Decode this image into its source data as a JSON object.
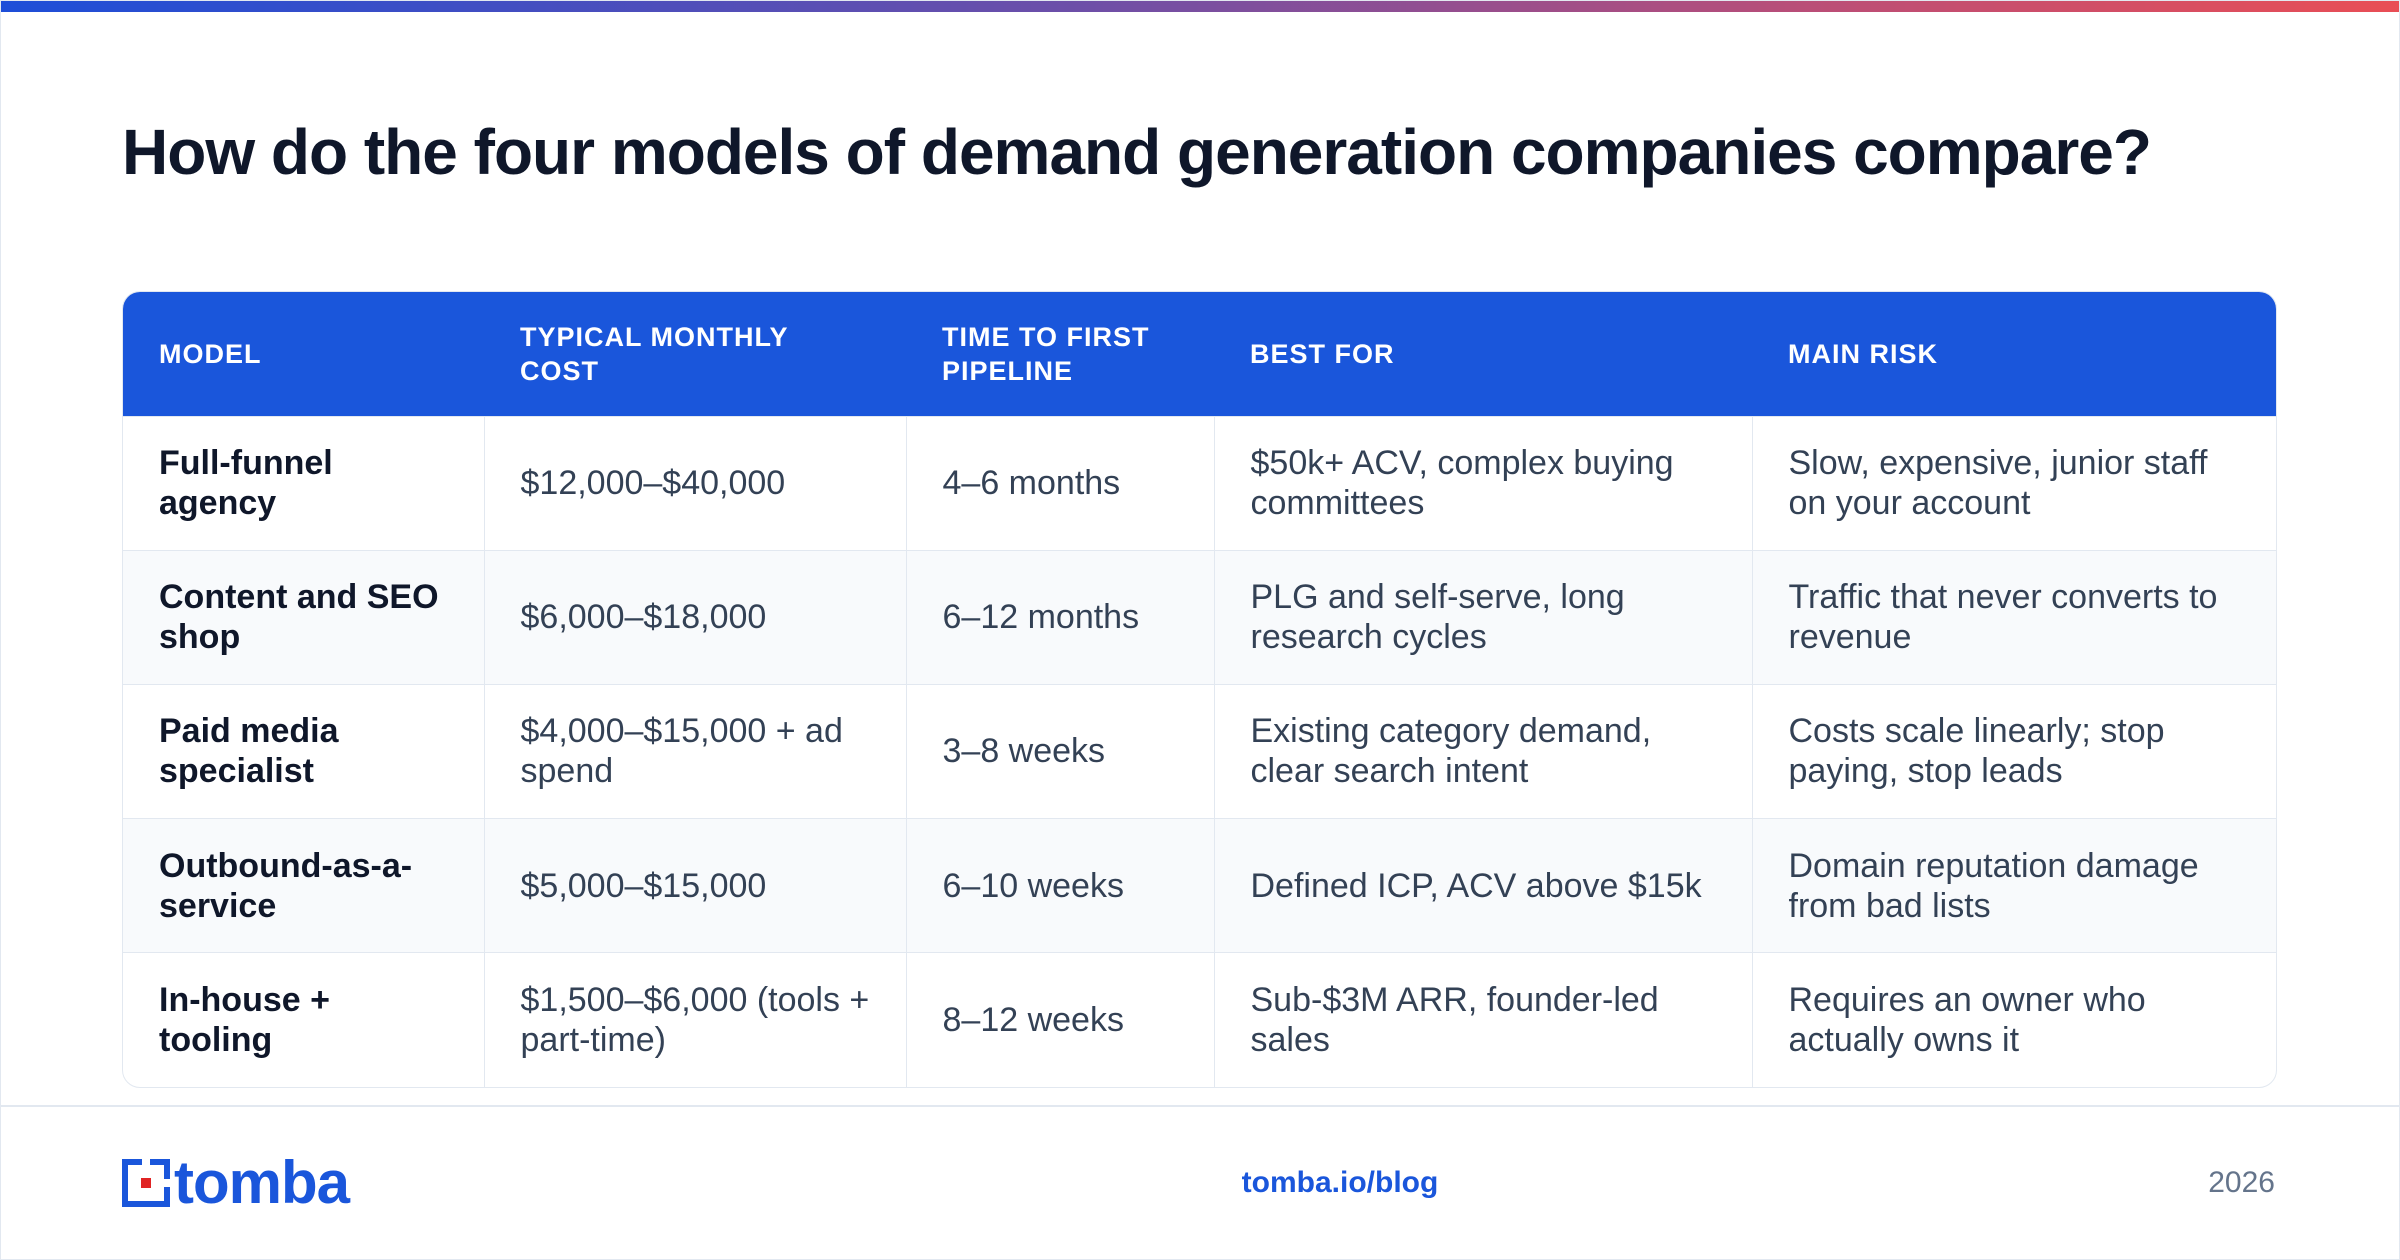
{
  "title": "How do the four models of demand generation companies compare?",
  "table": {
    "headers": [
      "MODEL",
      "TYPICAL MONTHLY COST",
      "TIME TO FIRST PIPELINE",
      "BEST FOR",
      "MAIN RISK"
    ],
    "rows": [
      [
        "Full-funnel agency",
        "$12,000–$40,000",
        "4–6 months",
        "$50k+ ACV, complex buying committees",
        "Slow, expensive, junior staff on your account"
      ],
      [
        "Content and SEO shop",
        "$6,000–$18,000",
        "6–12 months",
        "PLG and self-serve, long research cycles",
        "Traffic that never converts to revenue"
      ],
      [
        "Paid media specialist",
        "$4,000–$15,000 + ad spend",
        "3–8 weeks",
        "Existing category demand, clear search intent",
        "Costs scale linearly; stop paying, stop leads"
      ],
      [
        "Outbound-as-a-service",
        "$5,000–$15,000",
        "6–10 weeks",
        "Defined ICP, ACV above $15k",
        "Domain reputation damage from bad lists"
      ],
      [
        "In-house + tooling",
        "$1,500–$6,000 (tools + part-time)",
        "8–12 weeks",
        "Sub-$3M ARR, founder-led sales",
        "Requires an owner who actually owns it"
      ]
    ]
  },
  "footer": {
    "logo_text": "tomba",
    "url": "tomba.io/blog",
    "year": "2026"
  },
  "colors": {
    "accent": "#1a56db",
    "logo_red": "#e02424",
    "gradient_start": "#1d4ed8",
    "gradient_end": "#e94e55",
    "row_alt": "#f8fafc"
  },
  "icons": {
    "logo_mark": "tomba-logo-icon"
  }
}
